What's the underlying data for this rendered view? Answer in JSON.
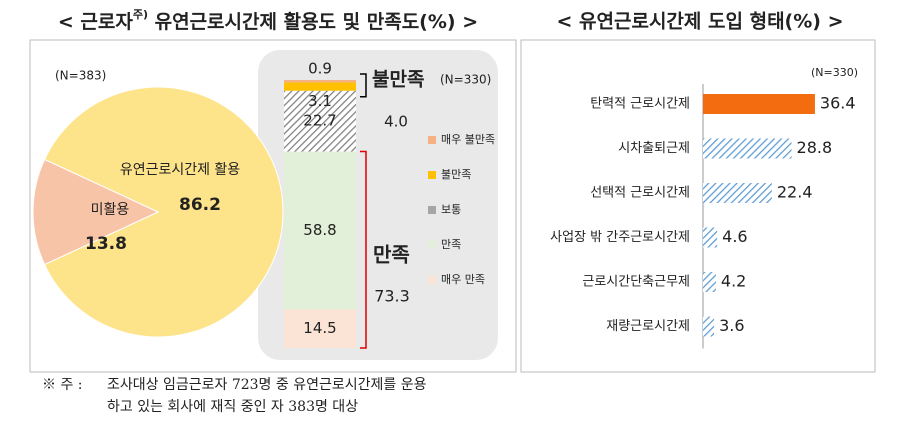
{
  "chart_data": [
    {
      "type": "pie",
      "title": [
        "< 근로자",
        "주)",
        " 유연근로시간제 활용도 및 만족도(%) >"
      ],
      "note": "(N=383)",
      "categories": [
        "유연근로시간제 활용",
        "미활용"
      ],
      "values": [
        86.2,
        13.8
      ],
      "colors": [
        "#fde38a",
        "#f8c4a8"
      ]
    },
    {
      "type": "stacked_bar",
      "note": "(N=330)",
      "ylim": [
        0,
        100
      ],
      "series": [
        {
          "name": "매우 불만족",
          "color": "#f4b183",
          "values": [
            0.9
          ]
        },
        {
          "name": "불만족",
          "color": "#ffc000",
          "values": [
            3.1
          ]
        },
        {
          "name": "보통",
          "color": "#a5a5a5",
          "values": [
            22.7
          ]
        },
        {
          "name": "만족",
          "color": "#e2efd9",
          "values": [
            58.8
          ]
        },
        {
          "name": "매우 만족",
          "color": "#fbe4d5",
          "values": [
            14.5
          ]
        }
      ],
      "groups": [
        {
          "label": "불만족",
          "value": 4,
          "value_label": "4.0",
          "color": "#000000"
        },
        {
          "label": "만족",
          "value": 73.3,
          "color": "#e00000"
        }
      ]
    },
    {
      "type": "hbar",
      "title": "< 유연근로시간제 도입 형태(%) >",
      "note": "(N=330)",
      "categories": [
        "탄력적 근로시간제",
        "시차출퇴근제",
        "선택적 근로시간제",
        "사업장 밖 간주근로시간제",
        "근로시간단축근무제",
        "재량근로시간제"
      ],
      "values": [
        36.4,
        28.8,
        22.4,
        4.6,
        4.2,
        3.6
      ],
      "colors": [
        "#f36c0f",
        "#5b9bd5",
        "#5b9bd5",
        "#5b9bd5",
        "#5b9bd5",
        "#5b9bd5"
      ],
      "hatched": [
        false,
        true,
        true,
        true,
        true,
        true
      ],
      "xlim": [
        0,
        40
      ]
    }
  ],
  "footnote": {
    "marker": "※ 주 :",
    "lines": [
      "조사대상 임금근로자 723명 중 유연근로시간제를 운용",
      "하고 있는 회사에 재직 중인 자 383명 대상"
    ]
  }
}
